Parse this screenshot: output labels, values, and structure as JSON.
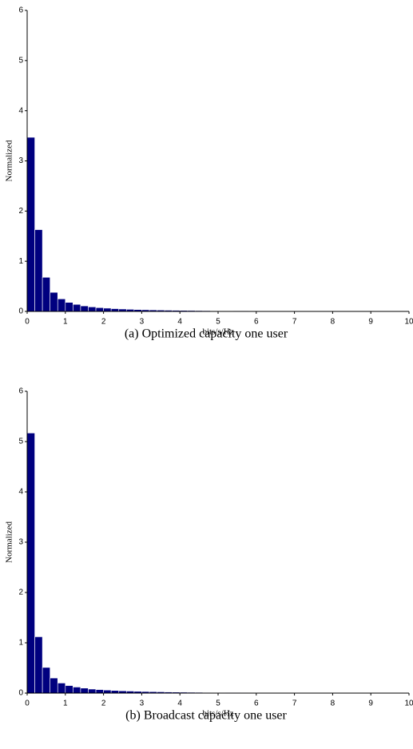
{
  "chart_data": [
    {
      "type": "histogram",
      "caption": "(a) Optimized capacity one user",
      "xlabel": "bits/s/Hz",
      "ylabel": "Normalized",
      "color": "#00007f",
      "bins": [
        0,
        0.2,
        0.4,
        0.6,
        0.8,
        1,
        1.2,
        1.4,
        1.6,
        1.8,
        2,
        2.2,
        2.4,
        2.6,
        2.8,
        3,
        3.2,
        3.4,
        3.6,
        3.8,
        4,
        4.2,
        4.4,
        4.6,
        4.8,
        5,
        5.2,
        5.4,
        5.6,
        5.8,
        6,
        6.2,
        6.4,
        6.6,
        6.8,
        7
      ],
      "values": [
        3.47,
        1.63,
        0.68,
        0.38,
        0.25,
        0.18,
        0.14,
        0.11,
        0.09,
        0.075,
        0.065,
        0.055,
        0.048,
        0.042,
        0.037,
        0.033,
        0.03,
        0.027,
        0.024,
        0.022,
        0.02,
        0.018,
        0.016,
        0.015,
        0.013,
        0.012,
        0.011,
        0.01,
        0.009,
        0.008,
        0.007,
        0.006,
        0.005,
        0.004,
        0.003
      ],
      "xlim": [
        0,
        10
      ],
      "ylim": [
        0,
        6
      ],
      "xticks": [
        0,
        1,
        2,
        3,
        4,
        5,
        6,
        7,
        8,
        9,
        10
      ],
      "yticks": [
        0,
        1,
        2,
        3,
        4,
        5,
        6
      ]
    },
    {
      "type": "histogram",
      "caption": "(b) Broadcast capacity one user",
      "xlabel": "bits/s/Hz",
      "ylabel": "Normalized",
      "color": "#00007f",
      "bins": [
        0,
        0.2,
        0.4,
        0.6,
        0.8,
        1,
        1.2,
        1.4,
        1.6,
        1.8,
        2,
        2.2,
        2.4,
        2.6,
        2.8,
        3,
        3.2,
        3.4,
        3.6,
        3.8,
        4,
        4.2,
        4.4,
        4.6,
        4.8,
        5,
        5.2,
        5.4,
        5.6,
        5.8,
        6,
        6.2,
        6.4,
        6.6,
        6.8,
        7
      ],
      "values": [
        5.17,
        1.12,
        0.51,
        0.3,
        0.2,
        0.15,
        0.12,
        0.1,
        0.08,
        0.07,
        0.06,
        0.052,
        0.045,
        0.04,
        0.035,
        0.031,
        0.028,
        0.025,
        0.022,
        0.02,
        0.018,
        0.016,
        0.015,
        0.013,
        0.012,
        0.011,
        0.01,
        0.009,
        0.008,
        0.007,
        0.006,
        0.005,
        0.004,
        0.003,
        0.002
      ],
      "xlim": [
        0,
        10
      ],
      "ylim": [
        0,
        6
      ],
      "xticks": [
        0,
        1,
        2,
        3,
        4,
        5,
        6,
        7,
        8,
        9,
        10
      ],
      "yticks": [
        0,
        1,
        2,
        3,
        4,
        5,
        6
      ]
    }
  ]
}
